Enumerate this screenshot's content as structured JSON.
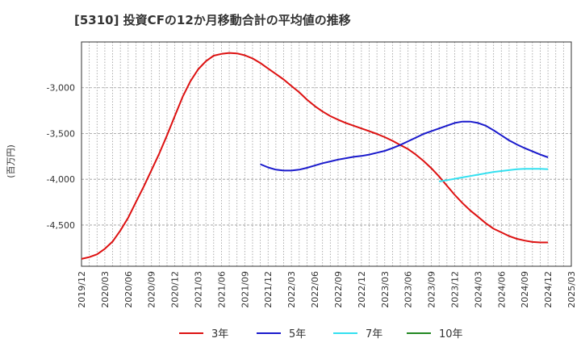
{
  "chart_data": {
    "type": "line",
    "title": "[5310]  投資CFの12か月移動合計の平均値の推移",
    "ylabel": "(百万円)",
    "xlabel": "",
    "ylim": [
      -4950,
      -2500
    ],
    "yticks": [
      -3000,
      -3500,
      -4000,
      -4500
    ],
    "ytick_labels": [
      "-3,000",
      "-3,500",
      "-4,000",
      "-4,500"
    ],
    "xlim": [
      "2019-12",
      "2025-03"
    ],
    "xtick_labels": [
      "2019/12",
      "2020/03",
      "2020/06",
      "2020/09",
      "2020/12",
      "2021/03",
      "2021/06",
      "2021/09",
      "2021/12",
      "2022/03",
      "2022/06",
      "2022/09",
      "2022/12",
      "2023/03",
      "2023/06",
      "2023/09",
      "2023/12",
      "2024/03",
      "2024/06",
      "2024/09",
      "2024/12",
      "2025/03"
    ],
    "grid": true,
    "legend": "bottom",
    "series": [
      {
        "name": "3年",
        "color": "#dd1111",
        "points": [
          [
            "2019-12",
            -4870
          ],
          [
            "2020-01",
            -4850
          ],
          [
            "2020-02",
            -4820
          ],
          [
            "2020-03",
            -4760
          ],
          [
            "2020-04",
            -4680
          ],
          [
            "2020-05",
            -4560
          ],
          [
            "2020-06",
            -4420
          ],
          [
            "2020-07",
            -4250
          ],
          [
            "2020-08",
            -4080
          ],
          [
            "2020-09",
            -3900
          ],
          [
            "2020-10",
            -3720
          ],
          [
            "2020-11",
            -3520
          ],
          [
            "2020-12",
            -3310
          ],
          [
            "2020-13",
            -3100
          ],
          [
            "2021-02",
            -2930
          ],
          [
            "2021-03",
            -2800
          ],
          [
            "2021-04",
            -2710
          ],
          [
            "2021-05",
            -2650
          ],
          [
            "2021-06",
            -2630
          ],
          [
            "2021-07",
            -2620
          ],
          [
            "2021-08",
            -2625
          ],
          [
            "2021-09",
            -2645
          ],
          [
            "2021-10",
            -2680
          ],
          [
            "2021-11",
            -2730
          ],
          [
            "2021-12",
            -2790
          ],
          [
            "2022-01",
            -2850
          ],
          [
            "2022-02",
            -2910
          ],
          [
            "2022-03",
            -2980
          ],
          [
            "2022-04",
            -3050
          ],
          [
            "2022-05",
            -3130
          ],
          [
            "2022-06",
            -3200
          ],
          [
            "2022-07",
            -3260
          ],
          [
            "2022-08",
            -3310
          ],
          [
            "2022-09",
            -3350
          ],
          [
            "2022-10",
            -3385
          ],
          [
            "2022-11",
            -3415
          ],
          [
            "2022-12",
            -3445
          ],
          [
            "2023-01",
            -3475
          ],
          [
            "2023-02",
            -3505
          ],
          [
            "2023-03",
            -3540
          ],
          [
            "2023-04",
            -3580
          ],
          [
            "2023-05",
            -3625
          ],
          [
            "2023-06",
            -3670
          ],
          [
            "2023-07",
            -3730
          ],
          [
            "2023-08",
            -3800
          ],
          [
            "2023-09",
            -3880
          ],
          [
            "2023-10",
            -3970
          ],
          [
            "2023-11",
            -4070
          ],
          [
            "2023-12",
            -4170
          ],
          [
            "2024-01",
            -4260
          ],
          [
            "2024-02",
            -4340
          ],
          [
            "2024-03",
            -4410
          ],
          [
            "2024-04",
            -4480
          ],
          [
            "2024-05",
            -4540
          ],
          [
            "2024-06",
            -4580
          ],
          [
            "2024-07",
            -4620
          ],
          [
            "2024-08",
            -4650
          ],
          [
            "2024-09",
            -4670
          ],
          [
            "2024-10",
            -4685
          ],
          [
            "2024-11",
            -4690
          ],
          [
            "2024-12",
            -4690
          ]
        ]
      },
      {
        "name": "5年",
        "color": "#1a1acc",
        "points": [
          [
            "2021-11",
            -3835
          ],
          [
            "2021-12",
            -3870
          ],
          [
            "2022-01",
            -3895
          ],
          [
            "2022-02",
            -3905
          ],
          [
            "2022-03",
            -3905
          ],
          [
            "2022-04",
            -3895
          ],
          [
            "2022-05",
            -3875
          ],
          [
            "2022-06",
            -3850
          ],
          [
            "2022-07",
            -3825
          ],
          [
            "2022-08",
            -3805
          ],
          [
            "2022-09",
            -3785
          ],
          [
            "2022-10",
            -3770
          ],
          [
            "2022-11",
            -3755
          ],
          [
            "2022-12",
            -3745
          ],
          [
            "2023-01",
            -3730
          ],
          [
            "2023-02",
            -3710
          ],
          [
            "2023-03",
            -3690
          ],
          [
            "2023-04",
            -3660
          ],
          [
            "2023-05",
            -3625
          ],
          [
            "2023-06",
            -3585
          ],
          [
            "2023-07",
            -3545
          ],
          [
            "2023-08",
            -3505
          ],
          [
            "2023-09",
            -3475
          ],
          [
            "2023-10",
            -3445
          ],
          [
            "2023-11",
            -3415
          ],
          [
            "2023-12",
            -3385
          ],
          [
            "2024-01",
            -3370
          ],
          [
            "2024-02",
            -3370
          ],
          [
            "2024-03",
            -3385
          ],
          [
            "2024-04",
            -3415
          ],
          [
            "2024-05",
            -3465
          ],
          [
            "2024-06",
            -3520
          ],
          [
            "2024-07",
            -3575
          ],
          [
            "2024-08",
            -3620
          ],
          [
            "2024-09",
            -3660
          ],
          [
            "2024-10",
            -3695
          ],
          [
            "2024-11",
            -3730
          ],
          [
            "2024-12",
            -3760
          ]
        ]
      },
      {
        "name": "7年",
        "color": "#33e0f0",
        "points": [
          [
            "2023-10",
            -4025
          ],
          [
            "2023-11",
            -4010
          ],
          [
            "2023-12",
            -3995
          ],
          [
            "2024-01",
            -3980
          ],
          [
            "2024-02",
            -3965
          ],
          [
            "2024-03",
            -3950
          ],
          [
            "2024-04",
            -3935
          ],
          [
            "2024-05",
            -3920
          ],
          [
            "2024-06",
            -3910
          ],
          [
            "2024-07",
            -3900
          ],
          [
            "2024-08",
            -3890
          ],
          [
            "2024-09",
            -3885
          ],
          [
            "2024-10",
            -3885
          ],
          [
            "2024-11",
            -3885
          ],
          [
            "2024-12",
            -3890
          ]
        ]
      },
      {
        "name": "10年",
        "color": "#228822",
        "points": []
      }
    ]
  }
}
